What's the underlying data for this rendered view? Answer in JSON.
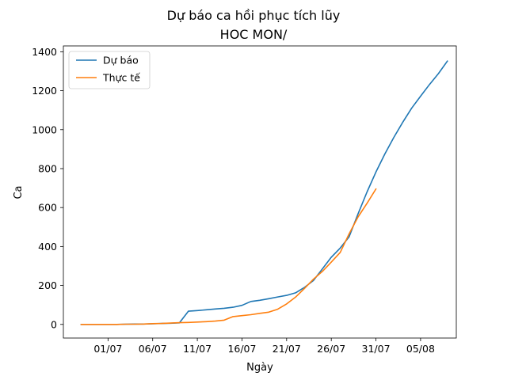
{
  "chart_data": {
    "type": "line",
    "title": "Dự báo ca hồi phục tích lũy",
    "subtitle": "HOC MON/",
    "xlabel": "Ngày",
    "ylabel": "Ca",
    "x_ticks": [
      "01/07",
      "06/07",
      "11/07",
      "16/07",
      "21/07",
      "26/07",
      "31/07",
      "05/08"
    ],
    "y_ticks": [
      "0",
      "200",
      "400",
      "600",
      "800",
      "1000",
      "1200",
      "1400"
    ],
    "xlim": [
      "2021-06-26",
      "2021-08-09"
    ],
    "ylim": [
      -70,
      1430
    ],
    "grid": false,
    "legend_position": "top-left",
    "series": [
      {
        "name": "Dự báo",
        "color": "#1f77b4",
        "points": [
          [
            "2021-06-28",
            0
          ],
          [
            "2021-06-29",
            0
          ],
          [
            "2021-06-30",
            0
          ],
          [
            "2021-07-01",
            0
          ],
          [
            "2021-07-02",
            0
          ],
          [
            "2021-07-03",
            1
          ],
          [
            "2021-07-04",
            2
          ],
          [
            "2021-07-05",
            2
          ],
          [
            "2021-07-06",
            3
          ],
          [
            "2021-07-07",
            5
          ],
          [
            "2021-07-08",
            6
          ],
          [
            "2021-07-09",
            8
          ],
          [
            "2021-07-10",
            68
          ],
          [
            "2021-07-11",
            71
          ],
          [
            "2021-07-12",
            75
          ],
          [
            "2021-07-13",
            79
          ],
          [
            "2021-07-14",
            83
          ],
          [
            "2021-07-15",
            88
          ],
          [
            "2021-07-16",
            98
          ],
          [
            "2021-07-17",
            118
          ],
          [
            "2021-07-18",
            124
          ],
          [
            "2021-07-19",
            132
          ],
          [
            "2021-07-20",
            141
          ],
          [
            "2021-07-21",
            149
          ],
          [
            "2021-07-22",
            162
          ],
          [
            "2021-07-23",
            190
          ],
          [
            "2021-07-24",
            225
          ],
          [
            "2021-07-25",
            285
          ],
          [
            "2021-07-26",
            345
          ],
          [
            "2021-07-27",
            392
          ],
          [
            "2021-07-28",
            450
          ],
          [
            "2021-07-29",
            568
          ],
          [
            "2021-07-30",
            680
          ],
          [
            "2021-07-31",
            782
          ],
          [
            "2021-08-01",
            875
          ],
          [
            "2021-08-02",
            960
          ],
          [
            "2021-08-03",
            1038
          ],
          [
            "2021-08-04",
            1110
          ],
          [
            "2021-08-05",
            1172
          ],
          [
            "2021-08-06",
            1232
          ],
          [
            "2021-08-07",
            1288
          ],
          [
            "2021-08-08",
            1352
          ]
        ]
      },
      {
        "name": "Thực tế",
        "color": "#ff7f0e",
        "points": [
          [
            "2021-06-28",
            0
          ],
          [
            "2021-06-29",
            0
          ],
          [
            "2021-06-30",
            0
          ],
          [
            "2021-07-01",
            0
          ],
          [
            "2021-07-02",
            0
          ],
          [
            "2021-07-03",
            1
          ],
          [
            "2021-07-04",
            1
          ],
          [
            "2021-07-05",
            2
          ],
          [
            "2021-07-06",
            4
          ],
          [
            "2021-07-07",
            5
          ],
          [
            "2021-07-08",
            7
          ],
          [
            "2021-07-09",
            9
          ],
          [
            "2021-07-10",
            10
          ],
          [
            "2021-07-11",
            12
          ],
          [
            "2021-07-12",
            14
          ],
          [
            "2021-07-13",
            17
          ],
          [
            "2021-07-14",
            22
          ],
          [
            "2021-07-15",
            40
          ],
          [
            "2021-07-16",
            45
          ],
          [
            "2021-07-17",
            50
          ],
          [
            "2021-07-18",
            57
          ],
          [
            "2021-07-19",
            63
          ],
          [
            "2021-07-20",
            78
          ],
          [
            "2021-07-21",
            105
          ],
          [
            "2021-07-22",
            140
          ],
          [
            "2021-07-23",
            185
          ],
          [
            "2021-07-24",
            232
          ],
          [
            "2021-07-25",
            272
          ],
          [
            "2021-07-26",
            320
          ],
          [
            "2021-07-27",
            370
          ],
          [
            "2021-07-28",
            465
          ],
          [
            "2021-07-29",
            552
          ],
          [
            "2021-07-30",
            622
          ],
          [
            "2021-07-31",
            695
          ]
        ]
      }
    ]
  }
}
